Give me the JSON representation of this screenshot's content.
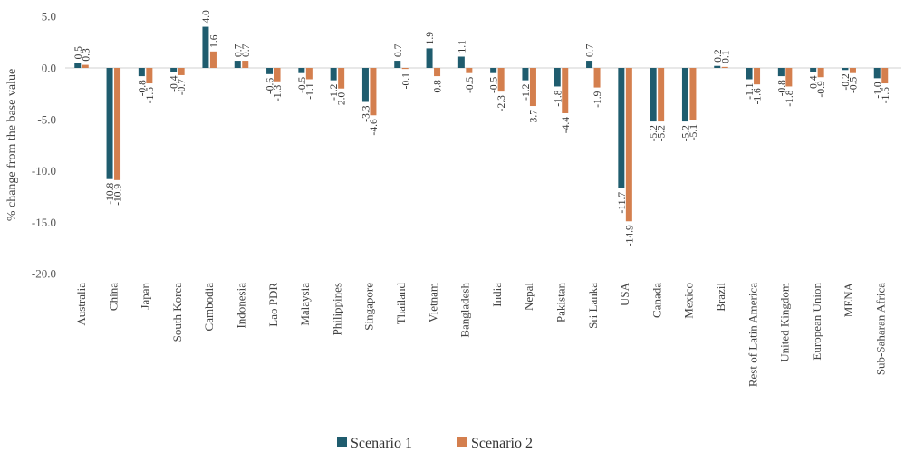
{
  "chart_data": {
    "type": "bar",
    "title": "",
    "xlabel": "",
    "ylabel": "% change from the base value",
    "ylim": [
      -20,
      5
    ],
    "yticks": [
      5.0,
      0.0,
      -5.0,
      -10.0,
      -15.0,
      -20.0
    ],
    "ytick_labels": [
      "5.0",
      "0.0",
      "-5.0",
      "-10.0",
      "-15.0",
      "-20.0"
    ],
    "grid": false,
    "legend_position": "bottom-center",
    "categories": [
      "Australia",
      "China",
      "Japan",
      "South Korea",
      "Cambodia",
      "Indonesia",
      "Lao PDR",
      "Malaysia",
      "Philippines",
      "Singapore",
      "Thailand",
      "Vietnam",
      "Bangladesh",
      "India",
      "Nepal",
      "Pakistan",
      "Sri Lanka",
      "USA",
      "Canada",
      "Mexico",
      "Brazil",
      "Rest of Latin America",
      "United Kingdom",
      "European Union",
      "MENA",
      "Sub-Saharan Africa"
    ],
    "series": [
      {
        "name": "Scenario 1",
        "color": "#1f5c6e",
        "values": [
          0.5,
          -10.8,
          -0.8,
          -0.4,
          4.0,
          0.7,
          -0.6,
          -0.5,
          -1.2,
          -3.3,
          0.7,
          1.9,
          1.1,
          -0.5,
          -1.2,
          -1.8,
          0.7,
          -11.7,
          -5.2,
          -5.2,
          0.2,
          -1.1,
          -0.8,
          -0.4,
          -0.2,
          -1.0
        ]
      },
      {
        "name": "Scenario 2",
        "color": "#d47f4e",
        "values": [
          0.3,
          -10.9,
          -1.5,
          -0.7,
          1.6,
          0.7,
          -1.3,
          -1.1,
          -2.0,
          -4.6,
          -0.1,
          -0.8,
          -0.5,
          -2.3,
          -3.7,
          -4.4,
          -1.9,
          -14.9,
          -5.2,
          -5.1,
          0.1,
          -1.6,
          -1.8,
          -0.9,
          -0.5,
          -1.5
        ]
      }
    ]
  },
  "legend": {
    "items": [
      {
        "label": "Scenario 1",
        "color": "#1f5c6e"
      },
      {
        "label": "Scenario 2",
        "color": "#d47f4e"
      }
    ]
  }
}
